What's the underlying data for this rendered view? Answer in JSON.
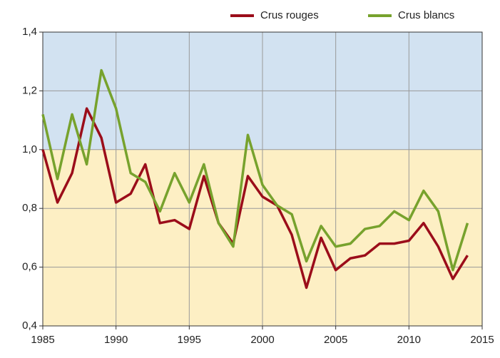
{
  "chart_data": {
    "type": "line",
    "x": [
      1985,
      1986,
      1987,
      1988,
      1989,
      1990,
      1991,
      1992,
      1993,
      1994,
      1995,
      1996,
      1997,
      1998,
      1999,
      2000,
      2001,
      2002,
      2003,
      2004,
      2005,
      2006,
      2007,
      2008,
      2009,
      2010,
      2011,
      2012,
      2013,
      2014
    ],
    "series": [
      {
        "name": "Crus rouges",
        "color": "#9b0d1a",
        "values": [
          1.0,
          0.82,
          0.92,
          1.14,
          1.04,
          0.82,
          0.85,
          0.95,
          0.75,
          0.76,
          0.73,
          0.91,
          0.75,
          0.68,
          0.91,
          0.84,
          0.81,
          0.71,
          0.53,
          0.7,
          0.59,
          0.63,
          0.64,
          0.68,
          0.68,
          0.69,
          0.75,
          0.67,
          0.56,
          0.64
        ]
      },
      {
        "name": "Crus blancs",
        "color": "#77a22d",
        "values": [
          1.12,
          0.9,
          1.12,
          0.95,
          1.27,
          1.14,
          0.92,
          0.89,
          0.79,
          0.92,
          0.82,
          0.95,
          0.75,
          0.67,
          1.05,
          0.88,
          0.81,
          0.78,
          0.62,
          0.74,
          0.67,
          0.68,
          0.73,
          0.74,
          0.79,
          0.76,
          0.86,
          0.79,
          0.59,
          0.75
        ]
      }
    ],
    "xlim": [
      1985,
      2015
    ],
    "xticks": [
      1985,
      1990,
      1995,
      2000,
      2005,
      2010,
      2015
    ],
    "ylim": [
      0.4,
      1.4
    ],
    "yticks": [
      {
        "value": 0.4,
        "label": "0,4"
      },
      {
        "value": 0.6,
        "label": "0,6"
      },
      {
        "value": 0.8,
        "label": "0,8"
      },
      {
        "value": 1.0,
        "label": "1,0"
      },
      {
        "value": 1.2,
        "label": "1,2"
      },
      {
        "value": 1.4,
        "label": "1,4"
      }
    ],
    "bands": [
      {
        "from": 0.4,
        "to": 1.0,
        "color": "#fdefc4"
      },
      {
        "from": 1.0,
        "to": 1.4,
        "color": "#d2e2f1"
      }
    ],
    "grid": true,
    "legend": "top-right"
  }
}
